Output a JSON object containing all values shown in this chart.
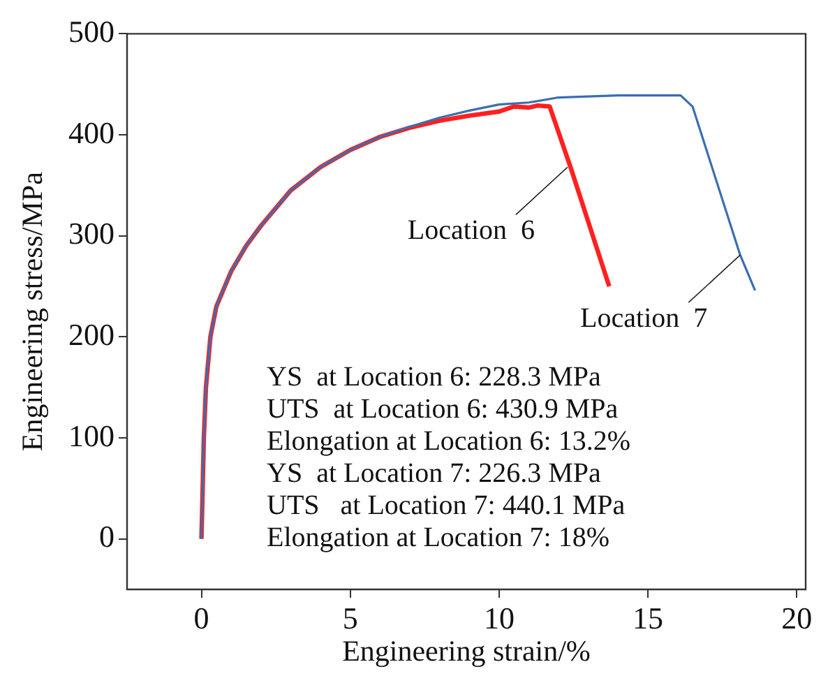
{
  "chart_data": {
    "type": "line",
    "xlabel": "Engineering strain/%",
    "ylabel": "Engineering stress/MPa",
    "xlim": [
      -2.5,
      20.3
    ],
    "ylim": [
      -50,
      500
    ],
    "xticks": [
      0,
      5,
      10,
      15,
      20
    ],
    "yticks": [
      0,
      100,
      200,
      300,
      400,
      500
    ],
    "grid": false,
    "legend": false,
    "marker": "none",
    "line_style": "solid",
    "series": [
      {
        "color": "#ff2020",
        "x": [
          0,
          0.08,
          0.15,
          0.3,
          0.5,
          1,
          1.5,
          2,
          3,
          4,
          5,
          6,
          7,
          8,
          9,
          10,
          10.5,
          11,
          11.3,
          11.7,
          12.4,
          13.7
        ],
        "values": [
          0,
          100,
          150,
          200,
          230,
          265,
          290,
          310,
          345,
          368,
          385,
          398,
          407,
          414,
          419,
          423,
          428,
          427,
          429,
          428,
          368,
          250
        ]
      },
      {
        "color": "#3a6fb0",
        "x": [
          0,
          0.08,
          0.15,
          0.3,
          0.5,
          1,
          1.5,
          2,
          3,
          4,
          5,
          6,
          7,
          8,
          9,
          10,
          11,
          12,
          13,
          14,
          15,
          16.1,
          16.5,
          18.1,
          18.6
        ],
        "values": [
          0,
          100,
          150,
          200,
          230,
          265,
          290,
          310,
          345,
          368,
          385,
          398,
          408,
          417,
          424,
          430,
          432,
          437,
          438,
          439,
          439,
          439,
          428,
          281,
          246
        ]
      }
    ],
    "annotations": [
      {
        "text": "Location  6",
        "x": 12.3,
        "y": 368
      },
      {
        "text": "Location  7",
        "x": 18.1,
        "y": 281
      },
      "YS  at Location 6: 228.3 MPa",
      "UTS  at Location 6: 430.9 MPa",
      "Elongation at Location 6: 13.2%",
      "YS  at Location 7: 226.3 MPa",
      "UTS   at Location 7: 440.1 MPa",
      "Elongation at Location 7: 18%"
    ]
  }
}
